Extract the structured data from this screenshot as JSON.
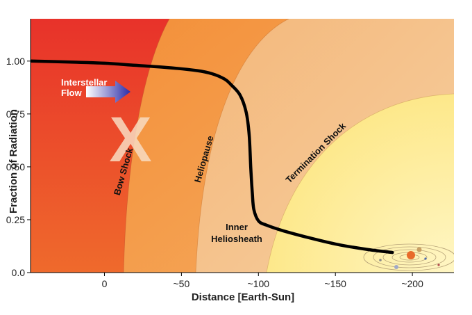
{
  "chart_data": {
    "type": "line",
    "xlabel": "Distance [Earth-Sun]",
    "ylabel": "Fraction of Radiation",
    "xlim": [
      -48,
      227
    ],
    "ylim": [
      0,
      1.2
    ],
    "x_ticks": [
      {
        "value": 0,
        "label": "0"
      },
      {
        "value": 50,
        "label": "~50"
      },
      {
        "value": 100,
        "label": "~100"
      },
      {
        "value": 150,
        "label": "~150"
      },
      {
        "value": 200,
        "label": "~200"
      }
    ],
    "y_ticks": [
      {
        "value": 0,
        "label": "0.0"
      },
      {
        "value": 0.25,
        "label": "0.25"
      },
      {
        "value": 0.5,
        "label": "0.50"
      },
      {
        "value": 0.75,
        "label": "0.75"
      },
      {
        "value": 1.0,
        "label": "1.00"
      }
    ],
    "series": [
      {
        "x": [
          -48,
          -20,
          0,
          20,
          40,
          60,
          70,
          78,
          82,
          88,
          92,
          94,
          95,
          96,
          97,
          100,
          105,
          115,
          130,
          150,
          170,
          187
        ],
        "y": [
          1.0,
          0.995,
          0.99,
          0.98,
          0.97,
          0.955,
          0.94,
          0.915,
          0.89,
          0.84,
          0.76,
          0.65,
          0.5,
          0.38,
          0.3,
          0.245,
          0.225,
          0.2,
          0.17,
          0.135,
          0.11,
          0.095
        ],
        "color": "#000000"
      }
    ],
    "region_labels": {
      "bow_shock": "Bow Shock",
      "heliopause": "Heliopause",
      "termination_shock": "Termination Shock",
      "inner_heliosheath_1": "Inner",
      "inner_heliosheath_2": "Heliosheath"
    },
    "flow_label_1": "Interstellar",
    "flow_label_2": "Flow",
    "x_mark": "X",
    "colors": {
      "interstellar": "#e8432a",
      "beyond_heliopause": "#f39545",
      "heliosheath": "#f6c68d",
      "inner_zone": "#fdee9a",
      "flow_arrow": "#3b3bb0",
      "x_mark": "#f7d7b8"
    }
  }
}
